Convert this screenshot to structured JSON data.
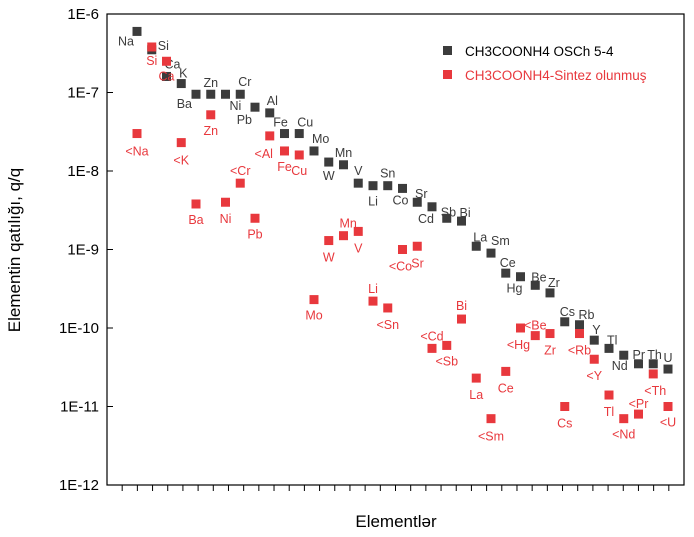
{
  "chart_data": {
    "type": "scatter",
    "scale": "log",
    "xlabel": "Elementlər",
    "ylabel": "Elementin qatılığı, q/q",
    "ylim": [
      1e-12,
      1e-06
    ],
    "yticks": [
      "1E-12",
      "1E-11",
      "1E-10",
      "1E-9",
      "1E-8",
      "1E-7",
      "1E-6"
    ],
    "grid": false,
    "legend_position": "top-right",
    "colors": {
      "series1": "#3c3c3c",
      "series2": "#e8383d"
    },
    "series": [
      {
        "name": "CH3COONH4 OSCh 5-4",
        "points": [
          {
            "label": "Na",
            "y": 6e-07
          },
          {
            "label": "Si",
            "y": 3.5e-07
          },
          {
            "label": "Ca",
            "y": 1.6e-07
          },
          {
            "label": "K",
            "y": 1.3e-07
          },
          {
            "label": "Ba",
            "y": 9.5e-08
          },
          {
            "label": "Zn",
            "y": 9.5e-08
          },
          {
            "label": "Ni",
            "y": 9.5e-08
          },
          {
            "label": "Cr",
            "y": 9.5e-08
          },
          {
            "label": "Pb",
            "y": 6.5e-08
          },
          {
            "label": "Al",
            "y": 5.5e-08
          },
          {
            "label": "Fe",
            "y": 3e-08
          },
          {
            "label": "Cu",
            "y": 3e-08
          },
          {
            "label": "Mo",
            "y": 1.8e-08
          },
          {
            "label": "W",
            "y": 1.3e-08
          },
          {
            "label": "Mn",
            "y": 1.2e-08
          },
          {
            "label": "V",
            "y": 7e-09
          },
          {
            "label": "Li",
            "y": 6.5e-09
          },
          {
            "label": "Sn",
            "y": 6.5e-09
          },
          {
            "label": "Co",
            "y": 6e-09
          },
          {
            "label": "Sr",
            "y": 4e-09
          },
          {
            "label": "Cd",
            "y": 3.5e-09
          },
          {
            "label": "Sb",
            "y": 2.5e-09
          },
          {
            "label": "Bi",
            "y": 2.3e-09
          },
          {
            "label": "La",
            "y": 1.1e-09
          },
          {
            "label": "Sm",
            "y": 9e-10
          },
          {
            "label": "Ce",
            "y": 5e-10
          },
          {
            "label": "Hg",
            "y": 4.5e-10
          },
          {
            "label": "Be",
            "y": 3.5e-10
          },
          {
            "label": "Zr",
            "y": 2.8e-10
          },
          {
            "label": "Cs",
            "y": 1.2e-10
          },
          {
            "label": "Rb",
            "y": 1.1e-10
          },
          {
            "label": "Y",
            "y": 7e-11
          },
          {
            "label": "Tl",
            "y": 5.5e-11
          },
          {
            "label": "Nd",
            "y": 4.5e-11
          },
          {
            "label": "Pr",
            "y": 3.5e-11
          },
          {
            "label": "Th",
            "y": 3.5e-11
          },
          {
            "label": "U",
            "y": 3e-11
          }
        ]
      },
      {
        "name": "CH3COONH4-Sintez olunmuş",
        "points": [
          {
            "label": "<Na",
            "y": 3e-08
          },
          {
            "label": "Si",
            "y": 3.8e-07
          },
          {
            "label": "Ca",
            "y": 2.5e-07
          },
          {
            "label": "<K",
            "y": 2.3e-08
          },
          {
            "label": "Ba",
            "y": 3.8e-09
          },
          {
            "label": "Zn",
            "y": 5.2e-08
          },
          {
            "label": "Ni",
            "y": 4e-09
          },
          {
            "label": "<Cr",
            "y": 7e-09
          },
          {
            "label": "Pb",
            "y": 2.5e-09
          },
          {
            "label": "<Al",
            "y": 2.8e-08
          },
          {
            "label": "Fe",
            "y": 1.8e-08
          },
          {
            "label": "Cu",
            "y": 1.6e-08
          },
          {
            "label": "Mo",
            "y": 2.3e-10
          },
          {
            "label": "W",
            "y": 1.3e-09
          },
          {
            "label": "Mn",
            "y": 1.5e-09
          },
          {
            "label": "V",
            "y": 1.7e-09
          },
          {
            "label": "Li",
            "y": 2.2e-10
          },
          {
            "label": "<Sn",
            "y": 1.8e-10
          },
          {
            "label": "<Co",
            "y": 1e-09
          },
          {
            "label": "Sr",
            "y": 1.1e-09
          },
          {
            "label": "<Cd",
            "y": 5.5e-11
          },
          {
            "label": "<Sb",
            "y": 6e-11
          },
          {
            "label": "Bi",
            "y": 1.3e-10
          },
          {
            "label": "La",
            "y": 2.3e-11
          },
          {
            "label": "<Sm",
            "y": 7e-12
          },
          {
            "label": "Ce",
            "y": 2.8e-11
          },
          {
            "label": "<Hg",
            "y": 1e-10
          },
          {
            "label": "<Be",
            "y": 8e-11
          },
          {
            "label": "Zr",
            "y": 8.5e-11
          },
          {
            "label": "Cs",
            "y": 1e-11
          },
          {
            "label": "<Rb",
            "y": 8.5e-11
          },
          {
            "label": "<Y",
            "y": 4e-11
          },
          {
            "label": "Tl",
            "y": 1.4e-11
          },
          {
            "label": "<Nd",
            "y": 7e-12
          },
          {
            "label": "<Pr",
            "y": 8e-12
          },
          {
            "label": "<Th",
            "y": 2.6e-11
          },
          {
            "label": "<U",
            "y": 1e-11
          }
        ]
      }
    ]
  }
}
